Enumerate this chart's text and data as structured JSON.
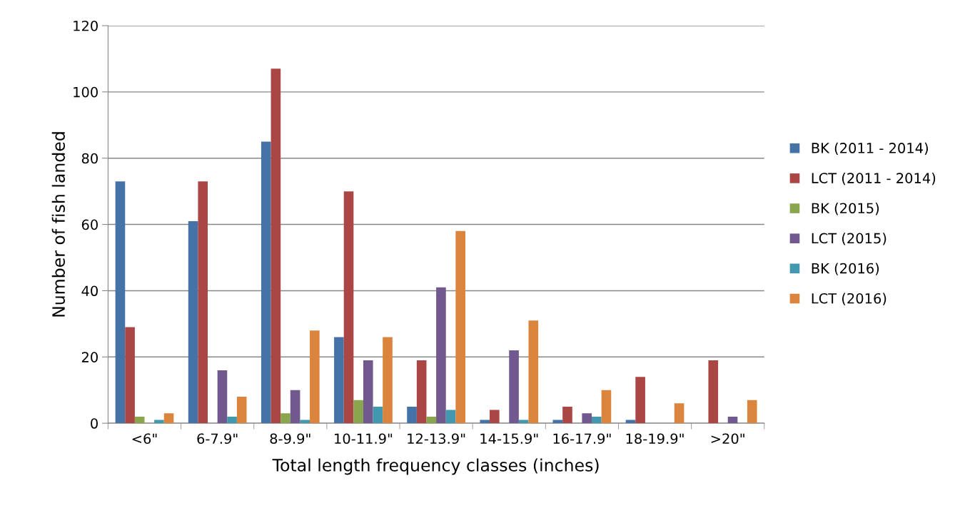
{
  "chart_data": {
    "type": "bar",
    "xlabel": "Total length frequency classes (inches)",
    "ylabel": "Number of fish landed",
    "categories": [
      "<6\"",
      "6-7.9\"",
      "8-9.9\"",
      "10-11.9\"",
      "12-13.9\"",
      "14-15.9\"",
      "16-17.9\"",
      "18-19.9\"",
      ">20\""
    ],
    "series": [
      {
        "name": "BK (2011 - 2014)",
        "color": "#4572a7",
        "values": [
          73,
          61,
          85,
          26,
          5,
          1,
          1,
          1,
          0
        ]
      },
      {
        "name": "LCT (2011 - 2014)",
        "color": "#aa4643",
        "values": [
          29,
          73,
          107,
          70,
          19,
          4,
          5,
          14,
          19
        ]
      },
      {
        "name": "BK (2015)",
        "color": "#89a54e",
        "values": [
          2,
          0,
          3,
          7,
          2,
          0,
          0,
          0,
          0
        ]
      },
      {
        "name": "LCT (2015)",
        "color": "#71588f",
        "values": [
          0,
          16,
          10,
          19,
          41,
          22,
          3,
          0,
          2
        ]
      },
      {
        "name": "BK (2016)",
        "color": "#4198af",
        "values": [
          1,
          2,
          1,
          5,
          4,
          1,
          2,
          0,
          0
        ]
      },
      {
        "name": "LCT (2016)",
        "color": "#db843d",
        "values": [
          3,
          8,
          28,
          26,
          58,
          31,
          10,
          6,
          7
        ]
      }
    ],
    "ylim": [
      0,
      120
    ],
    "yticks": [
      0,
      20,
      40,
      60,
      80,
      100,
      120
    ],
    "grid": "y",
    "legend": "right"
  }
}
